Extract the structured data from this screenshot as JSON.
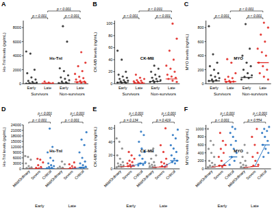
{
  "chart_data": [
    {
      "type": "strip",
      "label": "A",
      "ylabel": "Hs-TnI levels (pg/mL)",
      "annotation": "Hs-TnI",
      "ylim": [
        0,
        9000
      ],
      "yticks": [
        0,
        2000,
        4000,
        6000,
        8000
      ],
      "grid": false,
      "groups": [
        {
          "name": "Survivors",
          "series": [
            {
              "name": "Early",
              "color": "#222222",
              "median": 10,
              "values": [
                4600,
                4300,
                2000,
                1500,
                900,
                600,
                400,
                250,
                150,
                80,
                40,
                20,
                10,
                5
              ]
            },
            {
              "name": "Late",
              "color": "#e0201b",
              "median": 3,
              "values": [
                300,
                150,
                80,
                40,
                20,
                10,
                5,
                3,
                2,
                1
              ]
            }
          ]
        },
        {
          "name": "Non-survivors",
          "series": [
            {
              "name": "Early",
              "color": "#222222",
              "median": 80,
              "values": [
                8200,
                6000,
                2200,
                1800,
                1200,
                900,
                700,
                500,
                300,
                200,
                100,
                50,
                30
              ]
            },
            {
              "name": "Late",
              "color": "#e0201b",
              "median": 250,
              "values": [
                4500,
                3000,
                2500,
                1800,
                1400,
                1000,
                800,
                600,
                400,
                300,
                200,
                120,
                80
              ]
            }
          ]
        }
      ],
      "comparisons": [
        {
          "pair": [
            0,
            1
          ],
          "label": "p < 0.001"
        },
        {
          "pair": [
            2,
            3
          ],
          "label": "p < 0.001"
        },
        {
          "pair": [
            1,
            3
          ],
          "label": "p < 0.001"
        }
      ]
    },
    {
      "type": "strip",
      "label": "B",
      "ylabel": "CK-MB levels (ng/mL)",
      "annotation": "CK-MB",
      "ylim": [
        0,
        105
      ],
      "yticks": [
        0,
        20,
        40,
        60,
        80,
        100
      ],
      "grid": false,
      "groups": [
        {
          "name": "Survivors",
          "series": [
            {
              "name": "Early",
              "color": "#222222",
              "median": 2,
              "values": [
                55,
                40,
                20,
                15,
                12,
                10,
                8,
                6,
                5,
                4,
                3,
                2,
                1.5,
                1
              ]
            },
            {
              "name": "Late",
              "color": "#e0201b",
              "median": 1,
              "values": [
                15,
                10,
                8,
                6,
                5,
                4,
                3,
                2,
                1.5,
                1
              ]
            }
          ]
        },
        {
          "name": "Non-survivors",
          "series": [
            {
              "name": "Early",
              "color": "#222222",
              "median": 4,
              "values": [
                30,
                25,
                20,
                15,
                12,
                10,
                8,
                6,
                5,
                4,
                3,
                2
              ]
            },
            {
              "name": "Late",
              "color": "#e0201b",
              "median": 8,
              "values": [
                100,
                75,
                55,
                40,
                30,
                25,
                20,
                15,
                12,
                10,
                8,
                5,
                3
              ]
            }
          ]
        }
      ],
      "comparisons": [
        {
          "pair": [
            0,
            1
          ],
          "label": "p < 0.001"
        },
        {
          "pair": [
            2,
            3
          ],
          "label": "p < 0.001"
        },
        {
          "pair": [
            1,
            3
          ],
          "label": "p < 0.001"
        }
      ]
    },
    {
      "type": "strip",
      "label": "C",
      "ylabel": "MYO levels (ng/mL)",
      "annotation": "MYO",
      "ylim": [
        0,
        900
      ],
      "yticks": [
        0,
        200,
        400,
        600,
        800
      ],
      "grid": false,
      "groups": [
        {
          "name": "Survivors",
          "series": [
            {
              "name": "Early",
              "color": "#222222",
              "median": 40,
              "values": [
                820,
                420,
                300,
                250,
                200,
                150,
                120,
                100,
                80,
                60,
                50,
                40,
                30
              ]
            },
            {
              "name": "Late",
              "color": "#e0201b",
              "median": 30,
              "values": [
                350,
                300,
                150,
                100,
                80,
                60,
                40,
                30,
                25,
                20
              ]
            }
          ]
        },
        {
          "name": "Non-survivors",
          "series": [
            {
              "name": "Early",
              "color": "#222222",
              "median": 90,
              "values": [
                850,
                500,
                400,
                300,
                250,
                200,
                150,
                120,
                100,
                80,
                60
              ]
            },
            {
              "name": "Late",
              "color": "#e0201b",
              "median": 300,
              "values": [
                870,
                800,
                700,
                600,
                500,
                450,
                400,
                300,
                250,
                200,
                150,
                100,
                60
              ]
            }
          ]
        }
      ],
      "comparisons": [
        {
          "pair": [
            0,
            1
          ],
          "label": "p < 0.001"
        },
        {
          "pair": [
            2,
            3
          ],
          "label": "p < 0.001"
        },
        {
          "pair": [
            1,
            3
          ],
          "label": "p < 0.001"
        }
      ]
    },
    {
      "type": "strip",
      "label": "D",
      "ylabel": "Hs-TnI levels (pg/mL)",
      "annotation": "Hs-TnI",
      "line_style": "solid",
      "ylim": [
        0,
        24000
      ],
      "yticks": [
        0,
        3000,
        6000,
        9000,
        12000,
        15000,
        18000,
        21000,
        24000
      ],
      "grid": false,
      "groups": [
        {
          "name": "Early",
          "series": [
            {
              "name": "Mild/Ordinary",
              "color": "#808080",
              "median": 10,
              "values": [
                7000,
                6500,
                5000,
                3000,
                1500,
                800,
                400,
                200,
                100,
                50,
                20
              ]
            },
            {
              "name": "Severe",
              "color": "#e0201b",
              "median": 30,
              "values": [
                5500,
                5000,
                3500,
                2000,
                1000,
                500,
                200,
                100,
                50
              ]
            },
            {
              "name": "Critical",
              "color": "#1f6fc0",
              "median": 200,
              "values": [
                22000,
                12000,
                9000,
                6000,
                4500,
                3000,
                2000,
                1500,
                1000,
                600,
                300,
                100
              ]
            }
          ]
        },
        {
          "name": "Late",
          "series": [
            {
              "name": "Mild/Ordinary",
              "color": "#808080",
              "median": 5,
              "values": [
                4000,
                2500,
                1200,
                600,
                300,
                100,
                50,
                20,
                10
              ]
            },
            {
              "name": "Severe",
              "color": "#e0201b",
              "median": 20,
              "values": [
                3500,
                2500,
                1500,
                800,
                400,
                200,
                100,
                50
              ]
            },
            {
              "name": "Critical",
              "color": "#1f6fc0",
              "median": 800,
              "values": [
                20000,
                16000,
                13000,
                9000,
                6000,
                4000,
                3000,
                2000,
                1200,
                600,
                300
              ]
            }
          ]
        }
      ],
      "comparisons": [
        {
          "pair": [
            0,
            2
          ],
          "label": "p < 0.001"
        },
        {
          "pair": [
            1,
            2
          ],
          "label": "p < 0.001"
        },
        {
          "pair": [
            3,
            5
          ],
          "label": "p < 0.001"
        },
        {
          "pair": [
            4,
            5
          ],
          "label": "p < 0.001"
        }
      ]
    },
    {
      "type": "strip",
      "label": "E",
      "ylabel": "CK-MB levels (ng/mL)",
      "annotation": "CK-MB",
      "line_style": "solid",
      "ylim": [
        0,
        65
      ],
      "yticks": [
        0,
        20,
        40,
        60
      ],
      "grid": false,
      "groups": [
        {
          "name": "Early",
          "series": [
            {
              "name": "Mild/Ordinary",
              "color": "#808080",
              "median": 3,
              "values": [
                45,
                40,
                30,
                20,
                15,
                10,
                8,
                6,
                5,
                4,
                3,
                2
              ]
            },
            {
              "name": "Severe",
              "color": "#e0201b",
              "median": 4,
              "values": [
                25,
                20,
                15,
                12,
                10,
                8,
                6,
                5,
                4,
                3
              ]
            },
            {
              "name": "Critical",
              "color": "#1f6fc0",
              "median": 8,
              "values": [
                55,
                50,
                40,
                30,
                25,
                20,
                15,
                10,
                8,
                6,
                5
              ]
            }
          ]
        },
        {
          "name": "Late",
          "series": [
            {
              "name": "Mild/Ordinary",
              "color": "#808080",
              "median": 2,
              "values": [
                30,
                20,
                15,
                10,
                8,
                6,
                5,
                4,
                3,
                2
              ]
            },
            {
              "name": "Severe",
              "color": "#e0201b",
              "median": 3,
              "values": [
                60,
                35,
                25,
                15,
                10,
                8,
                6,
                4,
                3
              ]
            },
            {
              "name": "Critical",
              "color": "#1f6fc0",
              "median": 12,
              "values": [
                58,
                50,
                45,
                35,
                30,
                25,
                20,
                15,
                12,
                10,
                8
              ]
            }
          ]
        }
      ],
      "comparisons": [
        {
          "pair": [
            0,
            2
          ],
          "label": "p = 0.134"
        },
        {
          "pair": [
            1,
            2
          ],
          "label": "p < 0.001"
        },
        {
          "pair": [
            3,
            5
          ],
          "label": "p = 0.419"
        },
        {
          "pair": [
            4,
            5
          ],
          "label": "p < 0.001"
        }
      ]
    },
    {
      "type": "strip",
      "label": "F",
      "ylabel": "MYO levels (ng/mL)",
      "annotation": "MYO",
      "line_style": "solid",
      "ylim": [
        0,
        1100
      ],
      "yticks": [
        0,
        200,
        400,
        600,
        800,
        1000
      ],
      "grid": false,
      "groups": [
        {
          "name": "Early",
          "series": [
            {
              "name": "Mild/Ordinary",
              "color": "#808080",
              "median": 40,
              "values": [
                1000,
                700,
                600,
                500,
                400,
                300,
                200,
                150,
                100,
                80,
                60,
                40
              ]
            },
            {
              "name": "Severe",
              "color": "#e0201b",
              "median": 80,
              "values": [
                900,
                700,
                600,
                500,
                400,
                300,
                200,
                100,
                80,
                50
              ]
            },
            {
              "name": "Critical",
              "color": "#1f6fc0",
              "median": 300,
              "values": [
                1050,
                1000,
                900,
                800,
                700,
                600,
                500,
                400,
                300,
                200,
                100
              ]
            }
          ]
        },
        {
          "name": "Late",
          "series": [
            {
              "name": "Mild/Ordinary",
              "color": "#808080",
              "median": 30,
              "values": [
                600,
                400,
                300,
                200,
                150,
                100,
                80,
                50,
                30
              ]
            },
            {
              "name": "Severe",
              "color": "#e0201b",
              "median": 60,
              "values": [
                1000,
                800,
                600,
                400,
                300,
                200,
                100,
                80
              ]
            },
            {
              "name": "Critical",
              "color": "#1f6fc0",
              "median": 600,
              "values": [
                1050,
                1000,
                950,
                900,
                800,
                700,
                600,
                500,
                400,
                300
              ]
            }
          ]
        }
      ],
      "comparisons": [
        {
          "pair": [
            0,
            2
          ],
          "label": "p < 0.001"
        },
        {
          "pair": [
            1,
            2
          ],
          "label": "p < 0.001"
        },
        {
          "pair": [
            3,
            5
          ],
          "label": "p = 0.554"
        },
        {
          "pair": [
            4,
            5
          ],
          "label": "p < 0.001"
        }
      ]
    }
  ]
}
